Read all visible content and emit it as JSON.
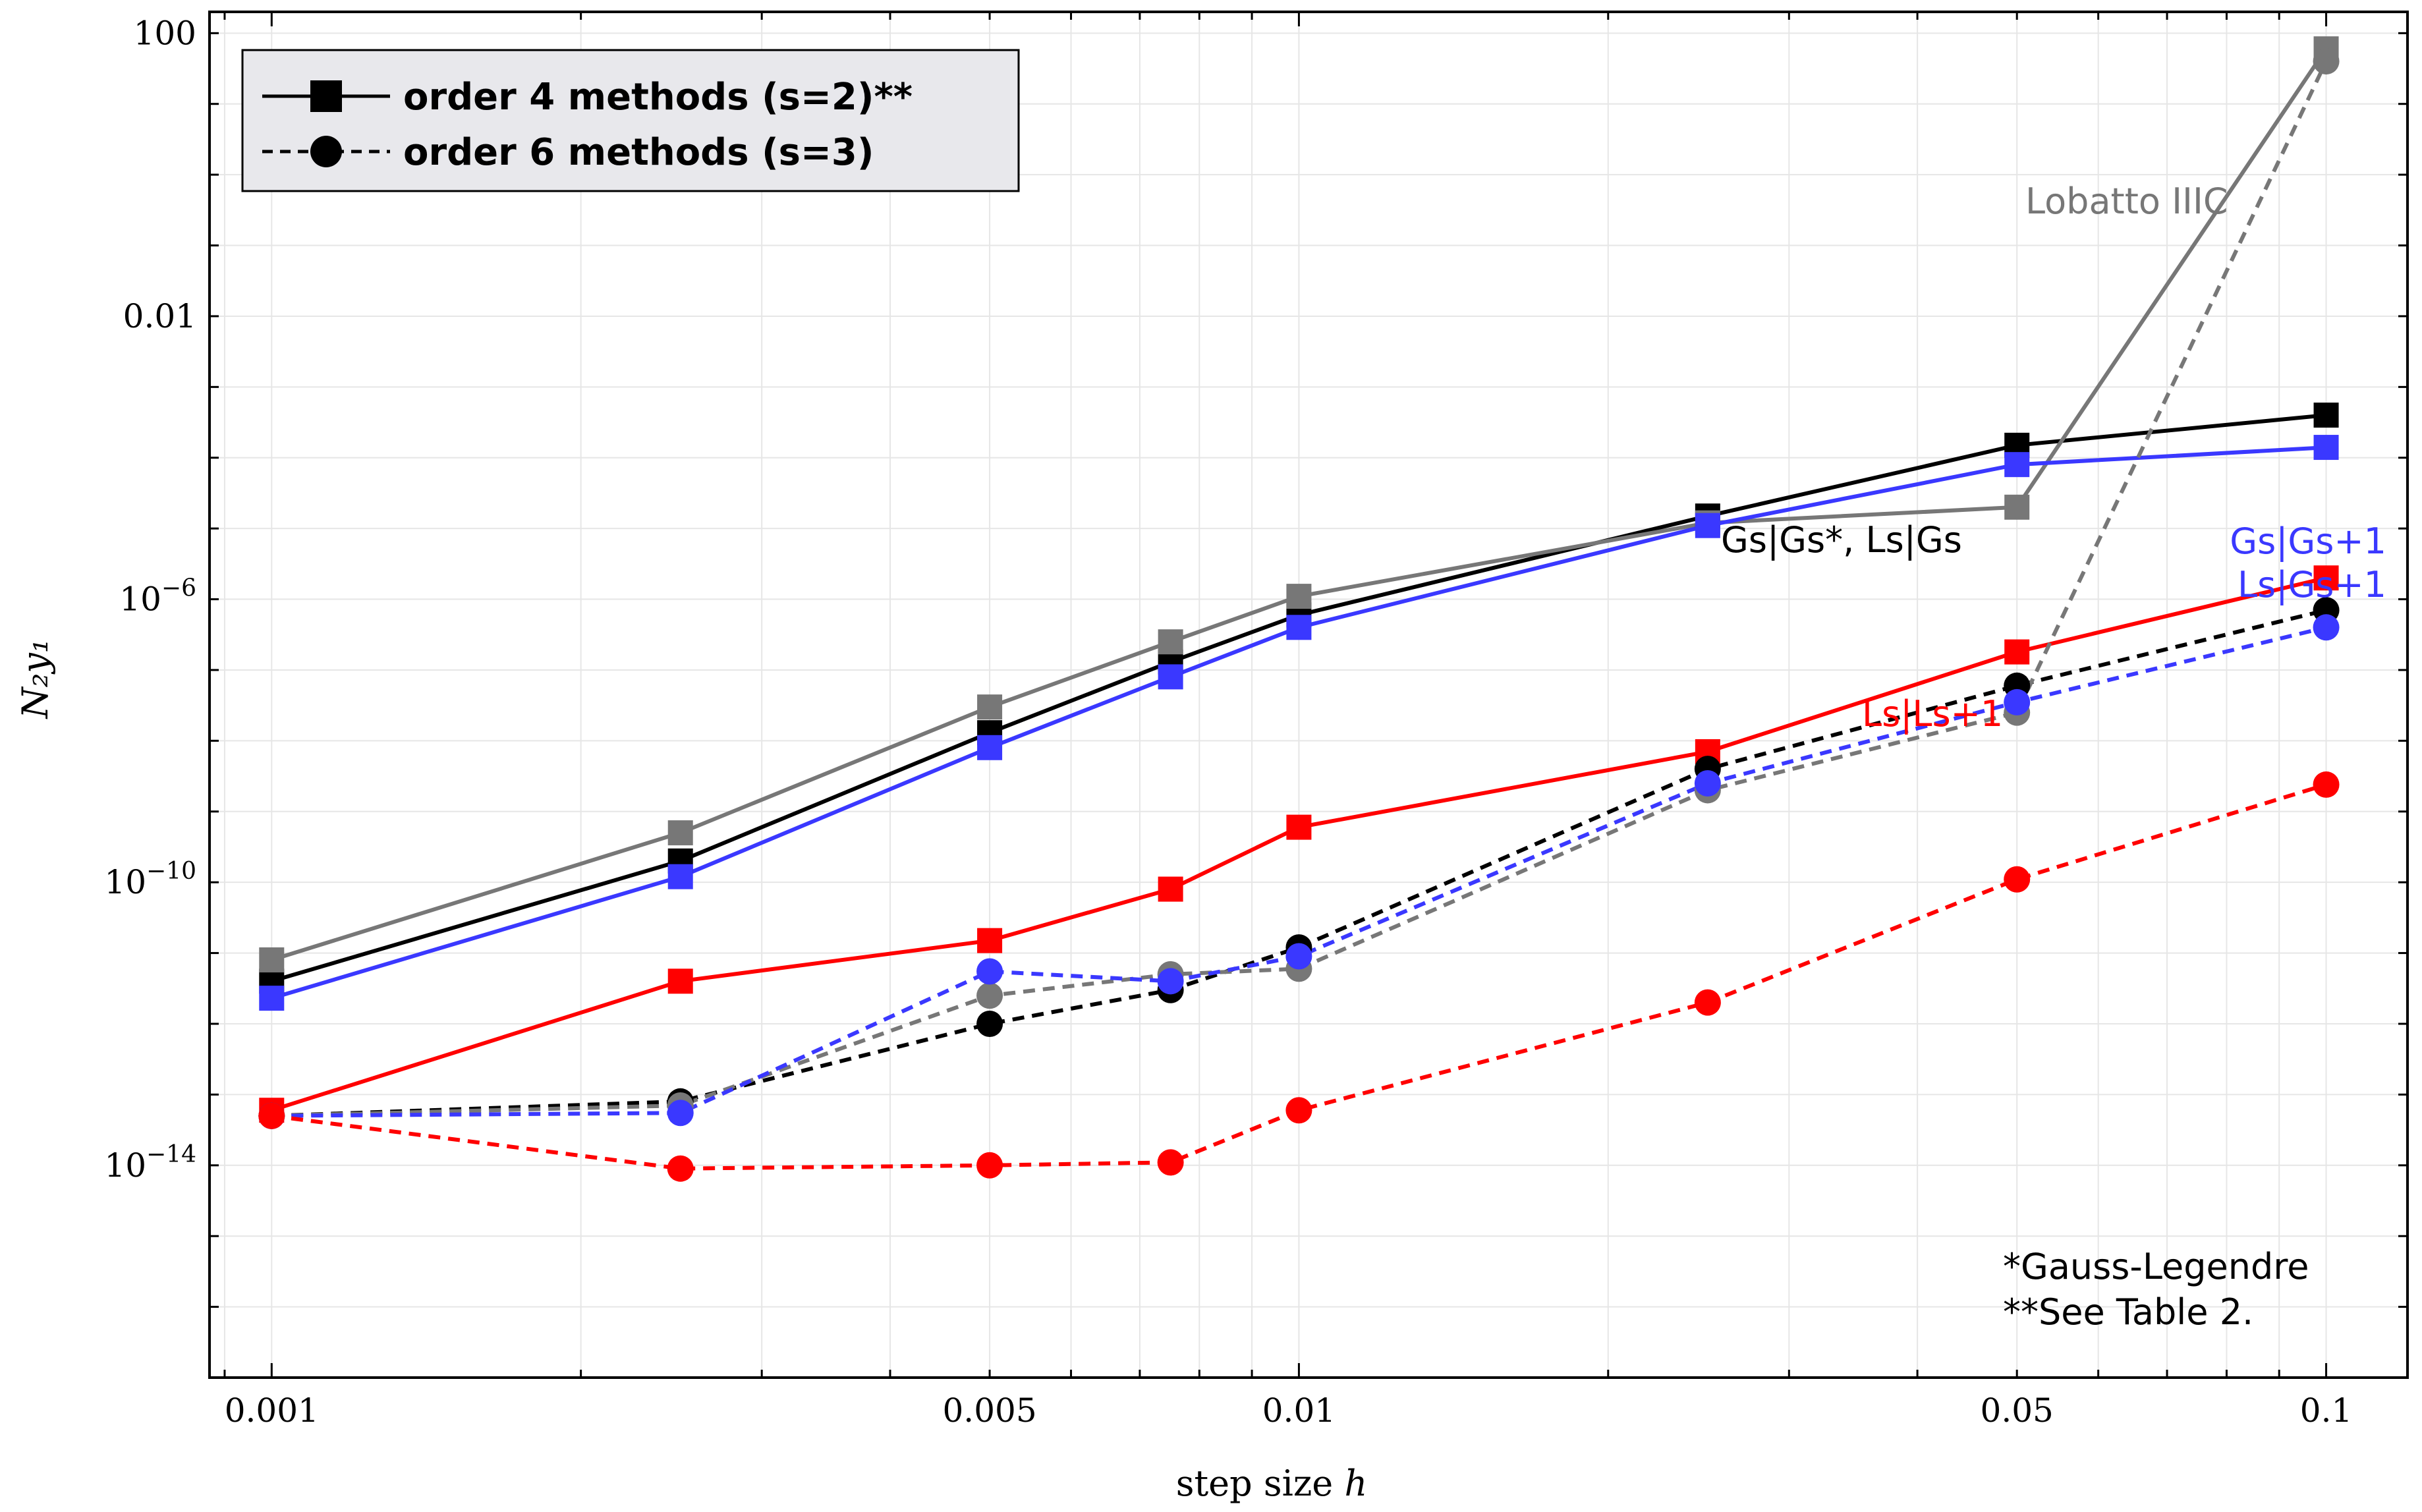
{
  "chart_data": {
    "type": "line",
    "xscale": "log",
    "yscale": "log",
    "xlabel": "step size",
    "xlabel_var": "h",
    "ylabel": "N₂y₁",
    "xlim": [
      0.00087,
      0.12
    ],
    "ylim": [
      1e-17,
      200.0
    ],
    "xticks": [
      {
        "value": 0.001,
        "label": "0.001"
      },
      {
        "value": 0.005,
        "label": "0.005"
      },
      {
        "value": 0.01,
        "label": "0.01"
      },
      {
        "value": 0.05,
        "label": "0.05"
      },
      {
        "value": 0.1,
        "label": "0.1"
      }
    ],
    "yticks": [
      {
        "value": 100.0,
        "base": "100",
        "exp": ""
      },
      {
        "value": 0.01,
        "base": "0.01",
        "exp": ""
      },
      {
        "value": 1e-06,
        "base": "10",
        "exp": "−6"
      },
      {
        "value": 1e-10,
        "base": "10",
        "exp": "−10"
      },
      {
        "value": 1e-14,
        "base": "10",
        "exp": "−14"
      }
    ],
    "grid": true,
    "legend": {
      "position": "top-left",
      "entries": [
        {
          "label": "order 4 methods (s=2)**",
          "style": "solid",
          "marker": "square"
        },
        {
          "label": "order 6 methods (s=3)",
          "style": "dashed",
          "marker": "circle"
        }
      ]
    },
    "x": [
      0.001,
      0.0025,
      0.005,
      0.0075,
      0.01,
      0.025,
      0.05,
      0.1
    ],
    "series": [
      {
        "name": "Gs|Gs*, Ls|Gs (order 4)",
        "color": "#000000",
        "style": "solid",
        "marker": "square",
        "values": [
          4e-12,
          2e-10,
          1.3e-08,
          1.3e-07,
          6e-07,
          1.5e-05,
          0.00015,
          0.0004
        ]
      },
      {
        "name": "Lobatto IIIC (order 4)",
        "color": "#777777",
        "style": "solid",
        "marker": "square",
        "values": [
          8e-12,
          5e-10,
          3e-08,
          2.5e-07,
          1.1e-06,
          1.2e-05,
          2e-05,
          60
        ]
      },
      {
        "name": "Gs|Gs+1 / Ls|Gs+1 (order 4)",
        "color": "#3a38ff",
        "style": "solid",
        "marker": "square",
        "values": [
          2.3e-12,
          1.2e-10,
          8e-09,
          8e-08,
          4e-07,
          1.1e-05,
          8e-05,
          0.00014
        ]
      },
      {
        "name": "Ls|Ls+1 (order 4)",
        "color": "#ff0000",
        "style": "solid",
        "marker": "square",
        "values": [
          6e-14,
          4e-12,
          1.5e-11,
          8e-11,
          6e-10,
          7e-09,
          1.8e-07,
          2e-06
        ]
      },
      {
        "name": "Gs|Gs*, Ls|Gs (order 6)",
        "color": "#000000",
        "style": "dashed",
        "marker": "circle",
        "values": [
          5e-14,
          8e-14,
          1e-12,
          3e-12,
          1.2e-11,
          4e-09,
          6e-08,
          7e-07
        ]
      },
      {
        "name": "Lobatto IIIC (order 6)",
        "color": "#777777",
        "style": "dashed",
        "marker": "circle",
        "values": [
          5e-14,
          7e-14,
          2.5e-12,
          5e-12,
          6e-12,
          2e-09,
          2.5e-08,
          40
        ]
      },
      {
        "name": "Gs|Gs+1 / Ls|Gs+1 (order 6)",
        "color": "#3a38ff",
        "style": "dashed",
        "marker": "circle",
        "values": [
          5e-14,
          5.5e-14,
          5.5e-12,
          4e-12,
          9e-12,
          2.5e-09,
          3.5e-08,
          4e-07
        ]
      },
      {
        "name": "Ls|Ls+1 (order 6)",
        "color": "#ff0000",
        "style": "dashed",
        "marker": "circle",
        "values": [
          5e-14,
          9e-15,
          1e-14,
          1.1e-14,
          6e-14,
          2e-12,
          1.1e-10,
          2.4e-09
        ]
      }
    ],
    "annotations": [
      {
        "text": "Lobatto IIIC",
        "color": "#777777"
      },
      {
        "text": "Gs|Gs*, Ls|Gs",
        "color": "#000000"
      },
      {
        "text": "Gs|Gs+1",
        "color": "#3a38ff"
      },
      {
        "text": "Ls|Gs+1",
        "color": "#3a38ff"
      },
      {
        "text": "Ls|Ls+1",
        "color": "#ff0000"
      },
      {
        "text": "*Gauss-Legendre",
        "color": "#000000"
      },
      {
        "text": "**See Table 2.",
        "color": "#000000"
      }
    ]
  }
}
